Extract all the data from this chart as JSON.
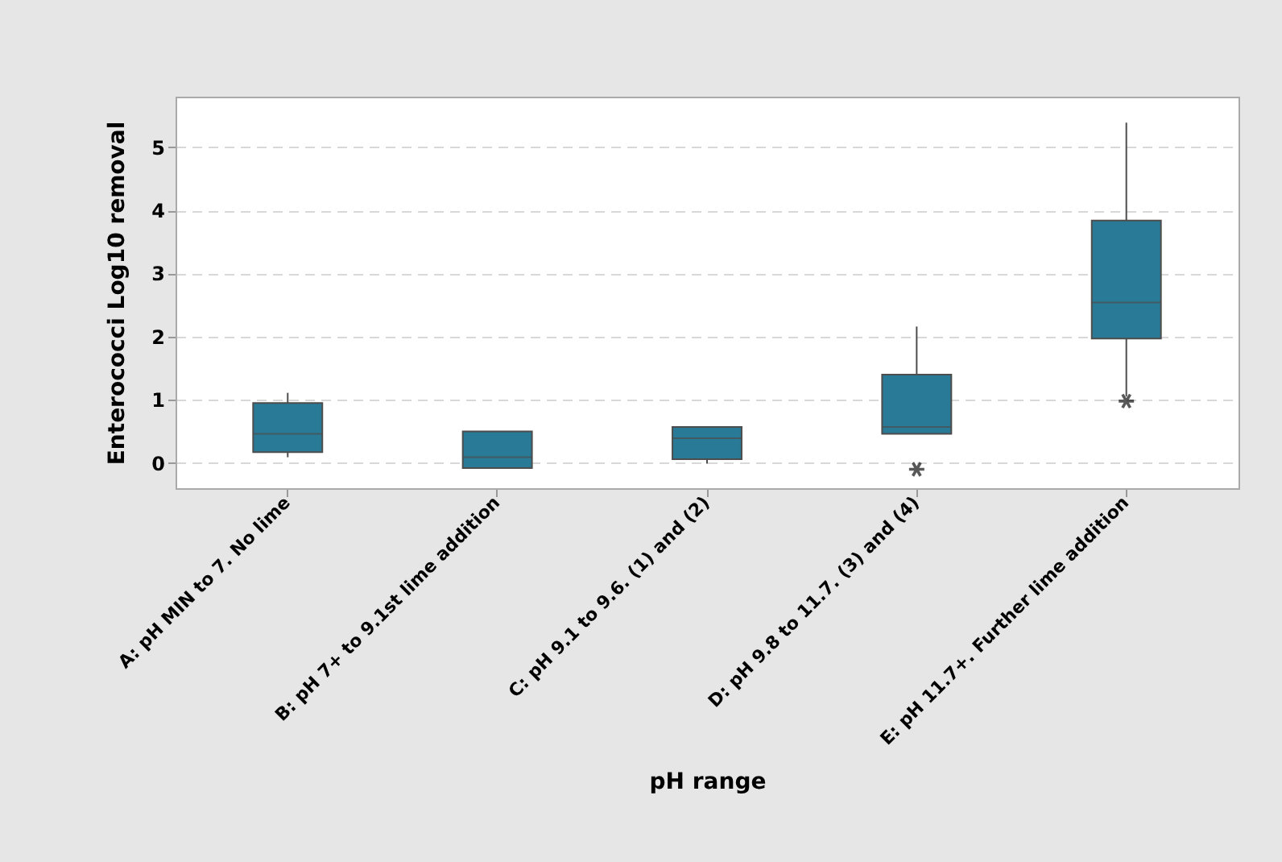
{
  "chart_data": {
    "type": "box",
    "xlabel": "pH range",
    "ylabel": "Enterococci Log10 removal",
    "categories": [
      "A: pH MIN to 7. No lime",
      "B: pH 7+ to 9.1st lime addition",
      "C: pH 9.1  to 9.6. (1) and (2)",
      "D: pH 9.8 to 11.7. (3) and (4)",
      "E: pH 11.7+. Further lime addition"
    ],
    "series": [
      {
        "color": "#297a96",
        "boxes": [
          {
            "low": 0.09,
            "q1": 0.17,
            "median": 0.46,
            "q3": 0.95,
            "high": 1.11
          },
          {
            "low": -0.08,
            "q1": -0.08,
            "median": 0.09,
            "q3": 0.5,
            "high": 0.5
          },
          {
            "low": -0.01,
            "q1": 0.06,
            "median": 0.39,
            "q3": 0.57,
            "high": 0.57
          },
          {
            "low": 0.46,
            "q1": 0.46,
            "median": 0.57,
            "q3": 1.4,
            "high": 2.16,
            "outliers": [
              -0.1
            ]
          },
          {
            "low": 1.05,
            "q1": 1.97,
            "median": 2.54,
            "q3": 3.84,
            "high": 5.39,
            "outliers": [
              0.98
            ]
          }
        ]
      }
    ],
    "ylim": [
      -0.4,
      5.8
    ],
    "yticks": [
      0,
      1,
      2,
      3,
      4,
      5
    ],
    "grid": "y"
  }
}
